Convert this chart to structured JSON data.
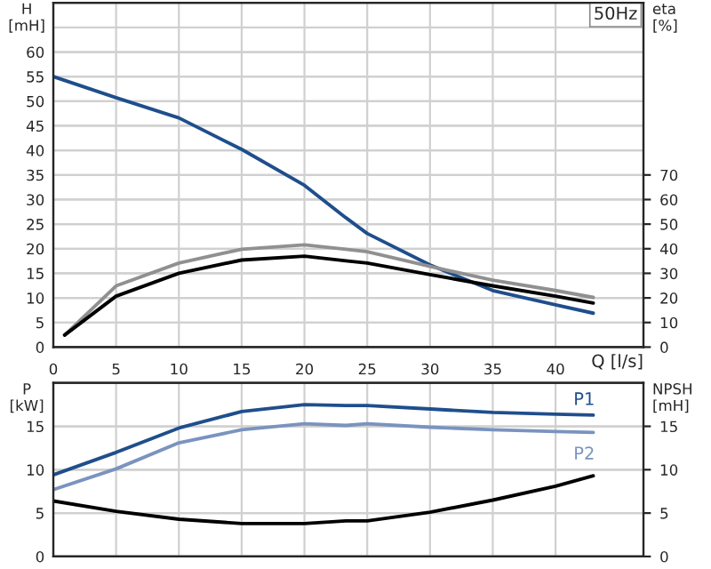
{
  "chart_data": [
    {
      "type": "line",
      "title": "50Hz",
      "xlabel": "Q [l/s]",
      "ylabel": "H\n[mH]",
      "y2label": "eta\n[%]",
      "xlim": [
        0,
        47
      ],
      "xticks": [
        0,
        5,
        10,
        15,
        20,
        25,
        30,
        35,
        40
      ],
      "ylim": [
        0,
        70
      ],
      "yticks": [
        0,
        5,
        10,
        15,
        20,
        25,
        30,
        35,
        40,
        45,
        50,
        55,
        60
      ],
      "y2lim": [
        0,
        140
      ],
      "y2ticks": [
        0,
        10,
        20,
        30,
        40,
        50,
        60,
        70
      ],
      "grid": true,
      "legend": false,
      "series": [
        {
          "color": "#1f4e8c",
          "x": [
            0,
            5,
            10,
            15,
            20,
            23.3,
            25,
            30,
            35,
            40,
            43
          ],
          "values": [
            55,
            50.7,
            46.6,
            40.2,
            32.9,
            26.3,
            23.1,
            16.7,
            11.5,
            8.6,
            6.9
          ]
        },
        {
          "color": "#909090",
          "axis": "y2",
          "x": [
            0.9,
            5,
            10,
            15,
            20,
            23.3,
            25,
            30,
            35,
            40,
            43
          ],
          "values": [
            4.9,
            24.9,
            34.2,
            39.8,
            41.6,
            39.8,
            38.8,
            32.8,
            27.2,
            23,
            20.2
          ]
        },
        {
          "color": "#000000",
          "axis": "y2",
          "x": [
            0.9,
            5,
            10,
            15,
            20,
            23.3,
            25,
            30,
            35,
            40,
            43
          ],
          "values": [
            4.9,
            20.7,
            30,
            35.4,
            37,
            35.1,
            34.2,
            29.5,
            24.9,
            20.7,
            17.9
          ]
        }
      ]
    },
    {
      "type": "line",
      "ylabel": "P\n[kW]",
      "y2label": "NPSH\n[mH]",
      "xlim": [
        0,
        47
      ],
      "xticks": [
        0,
        5,
        10,
        15,
        20,
        25,
        30,
        35,
        40
      ],
      "ylim": [
        0,
        20
      ],
      "yticks": [
        0,
        5,
        10,
        15
      ],
      "y2lim": [
        0,
        20
      ],
      "y2ticks": [
        0,
        5,
        10,
        15
      ],
      "tick_labels": "y",
      "grid": true,
      "legend": false,
      "series": [
        {
          "name": "P1",
          "color": "#1f4e8c",
          "x": [
            0,
            5,
            10,
            15,
            20,
            23.3,
            25,
            30,
            35,
            40,
            43
          ],
          "values": [
            9.4,
            12,
            14.8,
            16.7,
            17.5,
            17.4,
            17.4,
            17.0,
            16.6,
            16.4,
            16.3
          ]
        },
        {
          "name": "P2",
          "color": "#7a93bf",
          "x": [
            0,
            5,
            10,
            15,
            20,
            23.3,
            25,
            30,
            35,
            40,
            43
          ],
          "values": [
            7.7,
            10.1,
            13.1,
            14.6,
            15.3,
            15.1,
            15.3,
            14.9,
            14.6,
            14.4,
            14.3
          ]
        },
        {
          "color": "#000000",
          "axis": "y2",
          "x": [
            0,
            5,
            10,
            15,
            20,
            23.3,
            25,
            30,
            35,
            40,
            43
          ],
          "values": [
            6.4,
            5.2,
            4.3,
            3.8,
            3.8,
            4.1,
            4.1,
            5.1,
            6.5,
            8.1,
            9.3
          ]
        }
      ]
    }
  ]
}
